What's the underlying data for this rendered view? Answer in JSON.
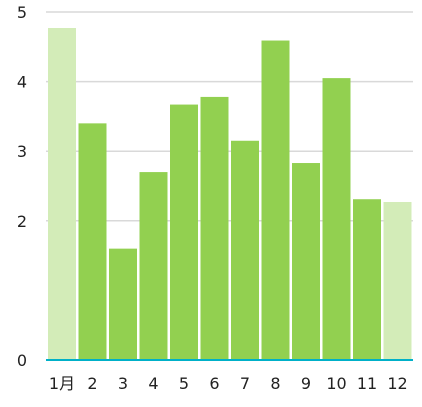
{
  "chart_data": {
    "type": "bar",
    "title": "",
    "xlabel": "",
    "ylabel": "",
    "categories": [
      "1月",
      "2",
      "3",
      "4",
      "5",
      "6",
      "7",
      "8",
      "9",
      "10",
      "11",
      "12"
    ],
    "values": [
      4.77,
      3.4,
      1.6,
      2.7,
      3.67,
      3.78,
      3.15,
      4.59,
      2.83,
      4.05,
      2.31,
      2.27
    ],
    "highlighted_categories": [
      "1月",
      "12"
    ],
    "ylim": [
      0,
      5
    ],
    "y_ticks": [
      {
        "value": 0,
        "label": "0"
      },
      {
        "value": 2,
        "label": "2"
      },
      {
        "value": 3,
        "label": "3"
      },
      {
        "value": 4,
        "label": "4"
      },
      {
        "value": 5,
        "label": "5"
      }
    ],
    "grid": true,
    "colors": {
      "bar": "#92d050",
      "bar_highlight": "#d3ecb8",
      "grid": "#d9d9d9",
      "baseline": "#00b0c8",
      "text": "#222222"
    }
  }
}
